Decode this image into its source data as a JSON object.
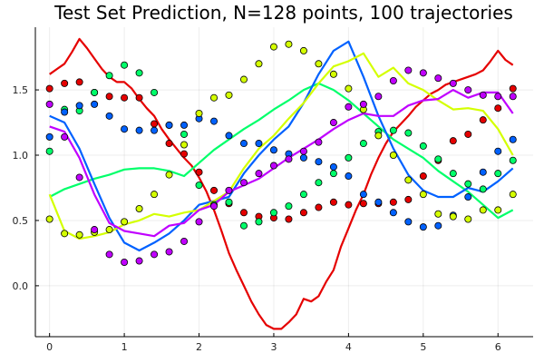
{
  "chart_data": {
    "type": "scatter",
    "title": "Test Set Prediction, N=128 points, 100 trajectories",
    "xlabel": "",
    "ylabel": "",
    "xlim": [
      -0.19,
      6.47
    ],
    "ylim": [
      -0.39,
      1.98
    ],
    "xticks": [
      0,
      1,
      2,
      3,
      4,
      5,
      6
    ],
    "xtick_labels": [
      "0",
      "1",
      "2",
      "3",
      "4",
      "5",
      "6"
    ],
    "yticks": [
      0.0,
      0.5,
      1.0,
      1.5
    ],
    "ytick_labels": [
      "0.0",
      "0.5",
      "1.0",
      "1.5"
    ],
    "grid": true,
    "legend": "none",
    "series": [
      {
        "color": "#e50000",
        "x": [
          0.0,
          0.2,
          0.4,
          0.6,
          0.8,
          1.0,
          1.2,
          1.4,
          1.6,
          1.8,
          2.0,
          2.2,
          2.4,
          2.6,
          2.8,
          3.0,
          3.2,
          3.4,
          3.6,
          3.8,
          4.0,
          4.2,
          4.4,
          4.6,
          4.8,
          5.0,
          5.2,
          5.4,
          5.6,
          5.8,
          6.0,
          6.2
        ],
        "y": [
          1.51,
          1.55,
          1.56,
          1.48,
          1.45,
          1.44,
          1.44,
          1.24,
          1.09,
          1.01,
          0.87,
          0.73,
          0.63,
          0.56,
          0.53,
          0.52,
          0.51,
          0.56,
          0.6,
          0.64,
          0.62,
          0.63,
          0.63,
          0.64,
          0.66,
          0.84,
          0.96,
          1.11,
          1.16,
          1.27,
          1.36,
          1.51
        ],
        "pred_x": [
          0.0,
          0.1,
          0.2,
          0.3,
          0.4,
          0.5,
          0.6,
          0.7,
          0.8,
          0.9,
          1.0,
          1.1,
          1.2,
          1.3,
          1.4,
          1.5,
          1.6,
          1.7,
          1.8,
          1.9,
          2.0,
          2.1,
          2.2,
          2.3,
          2.4,
          2.5,
          2.6,
          2.7,
          2.8,
          2.9,
          3.0,
          3.1,
          3.2,
          3.3,
          3.4,
          3.5,
          3.6,
          3.7,
          3.8,
          3.9,
          4.0,
          4.1,
          4.2,
          4.3,
          4.4,
          4.5,
          4.6,
          4.7,
          4.8,
          4.9,
          5.0,
          5.1,
          5.2,
          5.3,
          5.4,
          5.5,
          5.6,
          5.7,
          5.8,
          5.9,
          6.0,
          6.1,
          6.2
        ],
        "pred_y": [
          1.62,
          1.66,
          1.7,
          1.79,
          1.89,
          1.82,
          1.74,
          1.66,
          1.6,
          1.56,
          1.56,
          1.51,
          1.43,
          1.36,
          1.3,
          1.2,
          1.12,
          1.05,
          0.98,
          0.92,
          0.83,
          0.72,
          0.58,
          0.42,
          0.25,
          0.12,
          0.0,
          -0.12,
          -0.22,
          -0.3,
          -0.33,
          -0.33,
          -0.28,
          -0.22,
          -0.1,
          -0.12,
          -0.08,
          0.03,
          0.12,
          0.3,
          0.44,
          0.58,
          0.7,
          0.85,
          0.98,
          1.09,
          1.18,
          1.24,
          1.3,
          1.37,
          1.42,
          1.47,
          1.5,
          1.54,
          1.56,
          1.58,
          1.6,
          1.62,
          1.65,
          1.72,
          1.8,
          1.73,
          1.69
        ]
      },
      {
        "color": "#00ff6a",
        "x": [
          0.0,
          0.2,
          0.4,
          0.6,
          0.8,
          1.0,
          1.2,
          1.4,
          1.6,
          1.8,
          2.0,
          2.2,
          2.4,
          2.6,
          2.8,
          3.0,
          3.2,
          3.4,
          3.6,
          3.8,
          4.0,
          4.2,
          4.4,
          4.6,
          4.8,
          5.0,
          5.2,
          5.4,
          5.6,
          5.8,
          6.0,
          6.2
        ],
        "y": [
          1.03,
          1.35,
          1.34,
          1.48,
          1.61,
          1.69,
          1.63,
          1.48,
          1.23,
          1.16,
          0.77,
          0.62,
          0.64,
          0.46,
          0.49,
          0.56,
          0.61,
          0.7,
          0.79,
          0.86,
          0.98,
          1.09,
          1.18,
          1.19,
          1.17,
          1.07,
          0.97,
          0.86,
          0.78,
          0.74,
          0.86,
          0.96
        ],
        "pred_x": [
          0.0,
          0.2,
          0.4,
          0.6,
          0.8,
          1.0,
          1.2,
          1.4,
          1.6,
          1.8,
          2.0,
          2.2,
          2.4,
          2.6,
          2.8,
          3.0,
          3.2,
          3.4,
          3.6,
          3.8,
          4.0,
          4.2,
          4.4,
          4.6,
          4.8,
          5.0,
          5.2,
          5.4,
          5.6,
          5.8,
          6.0,
          6.2
        ],
        "pred_y": [
          0.68,
          0.74,
          0.78,
          0.82,
          0.85,
          0.89,
          0.9,
          0.9,
          0.88,
          0.84,
          0.94,
          1.04,
          1.12,
          1.2,
          1.27,
          1.35,
          1.42,
          1.5,
          1.55,
          1.5,
          1.42,
          1.32,
          1.22,
          1.12,
          1.05,
          0.98,
          0.88,
          0.8,
          0.72,
          0.62,
          0.52,
          0.58
        ]
      },
      {
        "color": "#0061ff",
        "x": [
          0.0,
          0.2,
          0.4,
          0.6,
          0.8,
          1.0,
          1.2,
          1.4,
          1.6,
          1.8,
          2.0,
          2.2,
          2.4,
          2.6,
          2.8,
          3.0,
          3.2,
          3.4,
          3.6,
          3.8,
          4.0,
          4.2,
          4.4,
          4.6,
          4.8,
          5.0,
          5.2,
          5.4,
          5.6,
          5.8,
          6.0,
          6.2
        ],
        "y": [
          1.14,
          1.33,
          1.38,
          1.39,
          1.3,
          1.2,
          1.19,
          1.19,
          1.23,
          1.23,
          1.28,
          1.26,
          1.15,
          1.09,
          1.09,
          1.04,
          1.01,
          0.98,
          0.95,
          0.91,
          0.84,
          0.7,
          0.64,
          0.56,
          0.49,
          0.45,
          0.46,
          0.54,
          0.68,
          0.87,
          1.03,
          1.12
        ],
        "pred_x": [
          0.0,
          0.2,
          0.4,
          0.6,
          0.8,
          1.0,
          1.2,
          1.4,
          1.6,
          1.8,
          2.0,
          2.2,
          2.4,
          2.6,
          2.8,
          3.0,
          3.2,
          3.4,
          3.6,
          3.8,
          4.0,
          4.2,
          4.4,
          4.6,
          4.8,
          5.0,
          5.2,
          5.4,
          5.6,
          5.8,
          6.0,
          6.2
        ],
        "pred_y": [
          1.3,
          1.25,
          1.05,
          0.78,
          0.52,
          0.33,
          0.27,
          0.33,
          0.4,
          0.5,
          0.62,
          0.65,
          0.68,
          0.86,
          1.0,
          1.12,
          1.22,
          1.4,
          1.62,
          1.8,
          1.87,
          1.6,
          1.3,
          1.05,
          0.85,
          0.73,
          0.68,
          0.68,
          0.75,
          0.72,
          0.8,
          0.9
        ]
      },
      {
        "color": "#d4ff00",
        "x": [
          0.0,
          0.2,
          0.4,
          0.6,
          0.8,
          1.0,
          1.2,
          1.4,
          1.6,
          1.8,
          2.0,
          2.2,
          2.4,
          2.6,
          2.8,
          3.0,
          3.2,
          3.4,
          3.6,
          3.8,
          4.0,
          4.2,
          4.4,
          4.6,
          4.8,
          5.0,
          5.2,
          5.4,
          5.6,
          5.8,
          6.0,
          6.2
        ],
        "y": [
          0.51,
          0.4,
          0.39,
          0.41,
          0.43,
          0.49,
          0.59,
          0.7,
          0.85,
          1.08,
          1.32,
          1.44,
          1.46,
          1.58,
          1.7,
          1.83,
          1.85,
          1.8,
          1.7,
          1.62,
          1.51,
          1.35,
          1.15,
          1.0,
          0.81,
          0.7,
          0.55,
          0.53,
          0.51,
          0.58,
          0.58,
          0.7
        ],
        "pred_x": [
          0.0,
          0.2,
          0.4,
          0.6,
          0.8,
          1.0,
          1.2,
          1.4,
          1.6,
          1.8,
          2.0,
          2.2,
          2.4,
          2.6,
          2.8,
          3.0,
          3.2,
          3.4,
          3.6,
          3.8,
          4.0,
          4.2,
          4.4,
          4.6,
          4.8,
          5.0,
          5.2,
          5.4,
          5.6,
          5.8,
          6.0,
          6.2
        ],
        "pred_y": [
          0.7,
          0.42,
          0.36,
          0.38,
          0.41,
          0.47,
          0.5,
          0.55,
          0.53,
          0.56,
          0.58,
          0.65,
          0.72,
          0.9,
          1.05,
          1.15,
          1.28,
          1.4,
          1.55,
          1.68,
          1.72,
          1.78,
          1.6,
          1.67,
          1.55,
          1.5,
          1.42,
          1.35,
          1.36,
          1.34,
          1.2,
          1.0
        ]
      },
      {
        "color": "#c000ff",
        "x": [
          0.0,
          0.2,
          0.4,
          0.6,
          0.8,
          1.0,
          1.2,
          1.4,
          1.6,
          1.8,
          2.0,
          2.2,
          2.4,
          2.6,
          2.8,
          3.0,
          3.2,
          3.4,
          3.6,
          3.8,
          4.0,
          4.2,
          4.4,
          4.6,
          4.8,
          5.0,
          5.2,
          5.4,
          5.6,
          5.8,
          6.0,
          6.2
        ],
        "y": [
          1.39,
          1.14,
          0.83,
          0.43,
          0.24,
          0.18,
          0.19,
          0.24,
          0.26,
          0.34,
          0.49,
          0.61,
          0.73,
          0.79,
          0.86,
          0.92,
          0.97,
          1.03,
          1.1,
          1.25,
          1.37,
          1.39,
          1.45,
          1.57,
          1.65,
          1.63,
          1.59,
          1.55,
          1.5,
          1.46,
          1.45,
          1.45
        ],
        "pred_x": [
          0.0,
          0.2,
          0.4,
          0.6,
          0.8,
          1.0,
          1.2,
          1.4,
          1.6,
          1.8,
          2.0,
          2.2,
          2.4,
          2.6,
          2.8,
          3.0,
          3.2,
          3.4,
          3.6,
          3.8,
          4.0,
          4.2,
          4.4,
          4.6,
          4.8,
          5.0,
          5.2,
          5.4,
          5.6,
          5.8,
          6.0,
          6.2
        ],
        "pred_y": [
          1.22,
          1.18,
          0.98,
          0.7,
          0.48,
          0.42,
          0.4,
          0.38,
          0.46,
          0.48,
          0.58,
          0.62,
          0.72,
          0.77,
          0.82,
          0.9,
          0.98,
          1.05,
          1.12,
          1.2,
          1.27,
          1.32,
          1.3,
          1.3,
          1.38,
          1.42,
          1.43,
          1.5,
          1.44,
          1.48,
          1.48,
          1.32
        ]
      }
    ]
  }
}
